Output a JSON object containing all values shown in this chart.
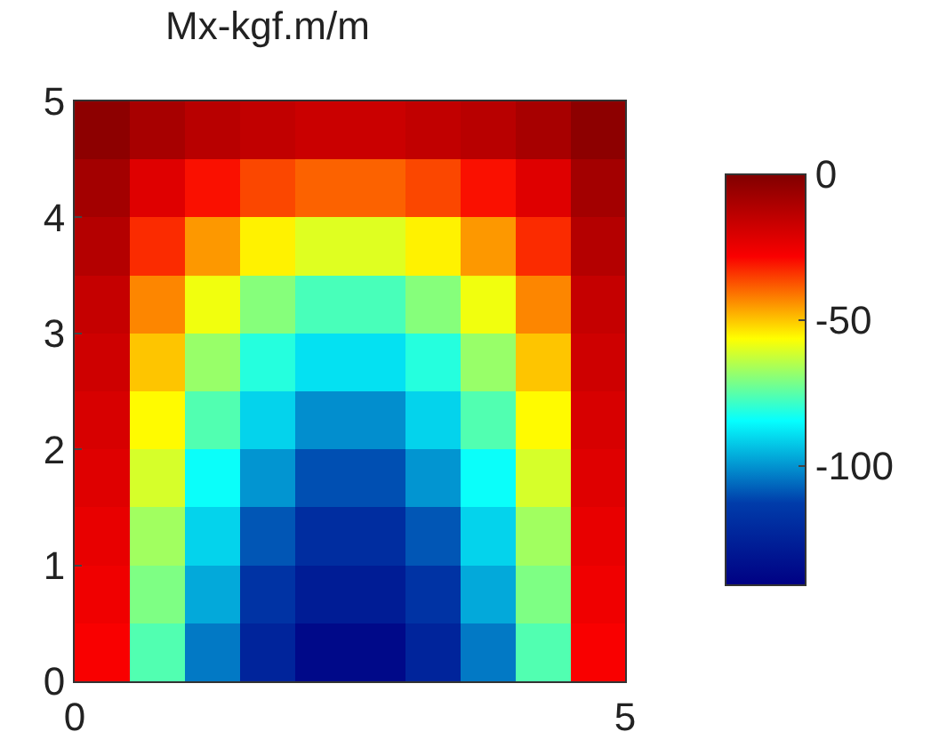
{
  "chart_data": {
    "type": "heatmap",
    "title": "Mx-kgf.m/m",
    "x": [
      0.25,
      0.75,
      1.25,
      1.75,
      2.25,
      2.75,
      3.25,
      3.75,
      4.25,
      4.75
    ],
    "y": [
      4.75,
      4.25,
      3.75,
      3.25,
      2.75,
      2.25,
      1.75,
      1.25,
      0.75,
      0.25
    ],
    "cells": [
      [
        -3,
        -9,
        -13,
        -15,
        -17,
        -17,
        -15,
        -13,
        -9,
        -3
      ],
      [
        -8,
        -22,
        -30,
        -36,
        -39,
        -39,
        -36,
        -30,
        -22,
        -8
      ],
      [
        -12,
        -33,
        -45,
        -55,
        -60,
        -60,
        -55,
        -45,
        -33,
        -12
      ],
      [
        -16,
        -43,
        -58,
        -70,
        -77,
        -77,
        -70,
        -58,
        -43,
        -16
      ],
      [
        -18,
        -50,
        -68,
        -81,
        -89,
        -89,
        -81,
        -68,
        -50,
        -18
      ],
      [
        -20,
        -56,
        -76,
        -91,
        -101,
        -101,
        -91,
        -76,
        -56,
        -20
      ],
      [
        -22,
        -61,
        -84,
        -100,
        -110,
        -110,
        -100,
        -84,
        -61,
        -22
      ],
      [
        -24,
        -67,
        -91,
        -109,
        -120,
        -120,
        -109,
        -91,
        -67,
        -24
      ],
      [
        -26,
        -71,
        -97,
        -117,
        -128,
        -128,
        -117,
        -97,
        -71,
        -26
      ],
      [
        -28,
        -76,
        -104,
        -124,
        -137,
        -137,
        -124,
        -104,
        -76,
        -28
      ]
    ],
    "xlim": [
      0,
      5
    ],
    "ylim": [
      0,
      5
    ],
    "xticks": [
      0,
      5
    ],
    "yticks": [
      0,
      1,
      2,
      3,
      4,
      5
    ],
    "clim": [
      -141,
      0
    ],
    "cticks": [
      0,
      -50,
      -100
    ]
  }
}
